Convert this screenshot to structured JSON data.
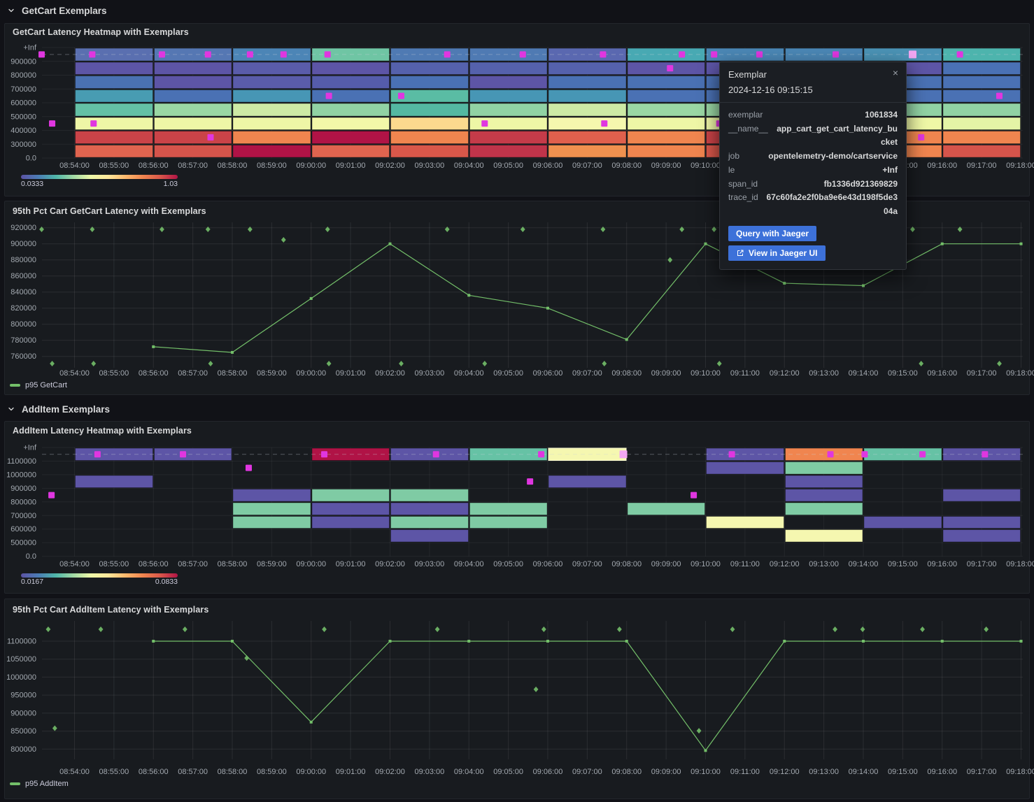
{
  "colors": {
    "background": "#111217",
    "panel": "#181b1f",
    "panel_border": "#23262c",
    "text": "#d8d9da",
    "axis_text": "#a3a9b0",
    "grid": "rgba(255,255,255,0.055)",
    "grid_line_chart": "rgba(255,255,255,0.08)",
    "dashed_exemplar_line": "rgba(204,210,219,0.35)",
    "green": "#73bf69",
    "exemplar": "#e036e0",
    "exemplar_highlight": "#f2a6f2",
    "button": "#3d71d9",
    "spectral": [
      "#5c53a5",
      "#4b7db5",
      "#4fb6a9",
      "#a0d9a4",
      "#eef8a8",
      "#fee89b",
      "#fdb96d",
      "#f0854f",
      "#d9574a",
      "#b01346"
    ]
  },
  "sections": [
    {
      "label": "GetCart Exemplars"
    },
    {
      "label": "AddItem Exemplars"
    }
  ],
  "panels": {
    "heatmap_getcart": {
      "title": "GetCart Latency Heatmap with Exemplars"
    },
    "line_getcart": {
      "title": "95th Pct Cart GetCart Latency with Exemplars",
      "legend": "p95 GetCart"
    },
    "heatmap_additem": {
      "title": "AddItem Latency Heatmap with Exemplars"
    },
    "line_additem": {
      "title": "95th Pct Cart AddItem Latency with Exemplars",
      "legend": "p95 AddItem"
    }
  },
  "xticks": [
    "08:54:00",
    "08:55:00",
    "08:56:00",
    "08:57:00",
    "08:58:00",
    "08:59:00",
    "09:00:00",
    "09:01:00",
    "09:02:00",
    "09:03:00",
    "09:04:00",
    "09:05:00",
    "09:06:00",
    "09:07:00",
    "09:08:00",
    "09:09:00",
    "09:10:00",
    "09:11:00",
    "09:12:00",
    "09:13:00",
    "09:14:00",
    "09:15:00",
    "09:16:00",
    "09:17:00",
    "09:18:00"
  ],
  "tooltip": {
    "title": "Exemplar",
    "close_label": "×",
    "timestamp": "2024-12-16 09:15:15",
    "rows": [
      {
        "label": "exemplar",
        "value": "1061834"
      },
      {
        "label": "__name__",
        "value": "app_cart_get_cart_latency_bucket"
      },
      {
        "label": "job",
        "value": "opentelemetry-demo/cartservice"
      },
      {
        "label": "le",
        "value": "+Inf"
      },
      {
        "label": "span_id",
        "value": "fb1336d921369829"
      },
      {
        "label": "trace_id",
        "value": "67c60fa2e2f0ba9e6e43d198f5de304a"
      }
    ],
    "buttons": [
      {
        "label": "Query with Jaeger",
        "icon": null
      },
      {
        "label": "View in Jaeger UI",
        "icon": "external-link-icon"
      }
    ]
  },
  "chart_data": [
    {
      "id": "hm_getcart",
      "type": "heatmap",
      "title": "GetCart Latency Heatmap with Exemplars",
      "yticks": [
        "+Inf",
        "900000",
        "800000",
        "700000",
        "600000",
        "500000",
        "400000",
        "300000",
        "0.0"
      ],
      "col_start": "08:54:00",
      "col_minutes": 2,
      "scale": {
        "min": "0.0333",
        "max": "1.03"
      },
      "columns": [
        [
          "#5a6fb0",
          "#5d55a6",
          "#4a71b2",
          "#489cb2",
          "#64c0a5",
          "#eef6a6",
          "#ca4348",
          "#e0644f"
        ],
        [
          "#5577b3",
          "#5d55a6",
          "#5d55a6",
          "#4a71b4",
          "#9ad7a4",
          "#eef6a6",
          "#ca4348",
          "#d5544b"
        ],
        [
          "#4c85b6",
          "#5a5caa",
          "#5a5caa",
          "#4796b5",
          "#cdeaa5",
          "#eef6a6",
          "#f0854f",
          "#b01346"
        ],
        [
          "#6fc5a4",
          "#5d55a6",
          "#555cab",
          "#4a71b4",
          "#91d2a4",
          "#f2f7a8",
          "#b01346",
          "#e0644f"
        ],
        [
          "#4f7ab3",
          "#5561ac",
          "#4a71b4",
          "#5abca4",
          "#54b8a2",
          "#fbd98e",
          "#f0854f",
          "#d9574a"
        ],
        [
          "#4f7ab3",
          "#5561ac",
          "#5d55a6",
          "#4796b5",
          "#91d2a4",
          "#eef6a6",
          "#c53b49",
          "#c0344a"
        ],
        [
          "#5a68b0",
          "#5561ac",
          "#4a71b4",
          "#4796b5",
          "#cdeaa5",
          "#f5f7ae",
          "#e0604d",
          "#f0914f"
        ],
        [
          "#48a9b3",
          "#5d55a6",
          "#4a71b4",
          "#4a71b4",
          "#9ad7a4",
          "#eef6a6",
          "#f0854f",
          "#f0854f"
        ],
        [
          "#4b87b5",
          "#5d55a6",
          "#4a71b4",
          "#4a71b4",
          "#9ad7a4",
          "#eef6a6",
          "#cc4348",
          "#d9574a"
        ],
        [
          "#4b87b5",
          "#5d55a6",
          "#5d55a6",
          "#4a71b4",
          "#91d2a4",
          "#eef6a6",
          "#f0854f",
          "#d5544b"
        ],
        [
          "#4b93b5",
          "#5d55a6",
          "#4a71b4",
          "#4a71b4",
          "#91d2a4",
          "#eff8a6",
          "#f0854f",
          "#f0854f"
        ],
        [
          "#4db4ad",
          "#4a71b4",
          "#4a71b4",
          "#4a71b4",
          "#91d2a4",
          "#e4f4a6",
          "#f0854f",
          "#d5544b"
        ]
      ],
      "exemplars": [
        {
          "t": "08:53:10",
          "row": 0
        },
        {
          "t": "08:53:26",
          "row": 5
        },
        {
          "t": "08:54:27",
          "row": 0
        },
        {
          "t": "08:54:29",
          "row": 5
        },
        {
          "t": "08:56:13",
          "row": 0
        },
        {
          "t": "08:57:23",
          "row": 0
        },
        {
          "t": "08:57:27",
          "row": 6
        },
        {
          "t": "08:58:27",
          "row": 0
        },
        {
          "t": "08:59:18",
          "row": 0
        },
        {
          "t": "09:00:25",
          "row": 0
        },
        {
          "t": "09:00:27",
          "row": 3
        },
        {
          "t": "09:02:17",
          "row": 3
        },
        {
          "t": "09:03:27",
          "row": 0
        },
        {
          "t": "09:04:24",
          "row": 5
        },
        {
          "t": "09:05:22",
          "row": 0
        },
        {
          "t": "09:07:24",
          "row": 0
        },
        {
          "t": "09:07:26",
          "row": 5
        },
        {
          "t": "09:09:06",
          "row": 1
        },
        {
          "t": "09:09:24",
          "row": 0
        },
        {
          "t": "09:10:13",
          "row": 0
        },
        {
          "t": "09:10:21",
          "row": 5
        },
        {
          "t": "09:11:22",
          "row": 0
        },
        {
          "t": "09:13:18",
          "row": 0
        },
        {
          "t": "09:15:15",
          "row": 0,
          "hl": true
        },
        {
          "t": "09:15:28",
          "row": 6
        },
        {
          "t": "09:16:27",
          "row": 0
        },
        {
          "t": "09:17:27",
          "row": 3
        }
      ]
    },
    {
      "id": "line_getcart",
      "type": "line",
      "title": "95th Pct Cart GetCart Latency with Exemplars",
      "yticks": [
        760000,
        780000,
        800000,
        820000,
        840000,
        860000,
        880000,
        900000,
        920000
      ],
      "series": [
        {
          "name": "p95 GetCart",
          "x": [
            "08:56:00",
            "08:58:00",
            "09:00:00",
            "09:02:00",
            "09:04:00",
            "09:06:00",
            "09:08:00",
            "09:10:00",
            "09:12:00",
            "09:14:00",
            "09:16:00",
            "09:18:00"
          ],
          "values": [
            772000,
            765000,
            832000,
            900000,
            836000,
            820000,
            781000,
            900000,
            851000,
            848000,
            900000,
            900000
          ]
        }
      ],
      "diamonds": [
        {
          "t": "08:53:10",
          "v": 918000
        },
        {
          "t": "08:54:27",
          "v": 918000
        },
        {
          "t": "08:56:13",
          "v": 918000
        },
        {
          "t": "08:57:23",
          "v": 918000
        },
        {
          "t": "08:58:27",
          "v": 918000
        },
        {
          "t": "09:00:25",
          "v": 918000
        },
        {
          "t": "09:03:27",
          "v": 918000
        },
        {
          "t": "09:05:22",
          "v": 918000
        },
        {
          "t": "09:07:24",
          "v": 918000
        },
        {
          "t": "09:09:24",
          "v": 918000
        },
        {
          "t": "09:10:13",
          "v": 918000
        },
        {
          "t": "09:11:22",
          "v": 918000
        },
        {
          "t": "09:13:18",
          "v": 918000
        },
        {
          "t": "09:15:15",
          "v": 918000
        },
        {
          "t": "09:16:27",
          "v": 918000
        },
        {
          "t": "08:59:18",
          "v": 905000
        },
        {
          "t": "09:09:06",
          "v": 880000
        },
        {
          "t": "08:53:26",
          "v": 751000
        },
        {
          "t": "08:54:29",
          "v": 751000
        },
        {
          "t": "08:57:27",
          "v": 751000
        },
        {
          "t": "09:00:27",
          "v": 751000
        },
        {
          "t": "09:02:17",
          "v": 751000
        },
        {
          "t": "09:04:24",
          "v": 751000
        },
        {
          "t": "09:07:26",
          "v": 751000
        },
        {
          "t": "09:10:21",
          "v": 751000
        },
        {
          "t": "09:15:28",
          "v": 751000
        },
        {
          "t": "09:17:27",
          "v": 751000
        }
      ]
    },
    {
      "id": "hm_additem",
      "type": "heatmap",
      "title": "AddItem Latency Heatmap with Exemplars",
      "yticks": [
        "+Inf",
        "1100000",
        "1000000",
        "900000",
        "800000",
        "700000",
        "600000",
        "500000",
        "0.0"
      ],
      "col_start": "08:54:00",
      "col_minutes": 2,
      "scale": {
        "min": "0.0167",
        "max": "0.0833"
      },
      "highlight_cell": {
        "col": 6,
        "row": 0
      },
      "columns": [
        [
          "#5d55a6",
          null,
          "#5d55a6",
          null,
          null,
          null,
          null,
          null
        ],
        [
          "#5d55a6",
          null,
          null,
          null,
          null,
          null,
          null,
          null
        ],
        [
          null,
          null,
          null,
          "#5d55a6",
          "#7fcba4",
          "#7fcba4",
          null,
          null
        ],
        [
          "#b01346",
          null,
          null,
          "#7fcba4",
          "#5d55a6",
          "#5d55a6",
          null,
          null
        ],
        [
          "#5d55a6",
          null,
          null,
          "#7fcba4",
          "#5d55a6",
          "#7fcba4",
          "#5d55a6",
          null
        ],
        [
          "#66c2a5",
          null,
          null,
          null,
          "#7fcba4",
          "#7fcba4",
          null,
          null
        ],
        [
          "#f5f7b0",
          null,
          "#5d55a6",
          null,
          null,
          null,
          null,
          null
        ],
        [
          null,
          null,
          null,
          null,
          "#7fcba4",
          null,
          null,
          null
        ],
        [
          "#5d55a6",
          "#5d55a6",
          null,
          null,
          null,
          "#f5f7b0",
          null,
          null
        ],
        [
          "#f0854f",
          "#7fcba4",
          "#5d55a6",
          "#5d55a6",
          "#7fcba4",
          null,
          "#f5f7b0",
          null
        ],
        [
          "#66c2a5",
          null,
          null,
          null,
          null,
          "#5d55a6",
          null,
          null
        ],
        [
          "#5d55a6",
          null,
          null,
          "#5d55a6",
          null,
          "#5d55a6",
          "#5d55a6",
          null
        ]
      ],
      "exemplars": [
        {
          "t": "08:53:25",
          "row": 3
        },
        {
          "t": "08:54:35",
          "row": 0
        },
        {
          "t": "08:56:45",
          "row": 0
        },
        {
          "t": "08:58:25",
          "row": 1
        },
        {
          "t": "09:00:20",
          "row": 0
        },
        {
          "t": "09:03:10",
          "row": 0
        },
        {
          "t": "09:05:33",
          "row": 2
        },
        {
          "t": "09:05:50",
          "row": 0
        },
        {
          "t": "09:07:55",
          "row": 0,
          "hl": true
        },
        {
          "t": "09:09:42",
          "row": 3
        },
        {
          "t": "09:10:40",
          "row": 0
        },
        {
          "t": "09:13:10",
          "row": 0
        },
        {
          "t": "09:14:02",
          "row": 0
        },
        {
          "t": "09:15:30",
          "row": 0
        },
        {
          "t": "09:17:05",
          "row": 0
        }
      ]
    },
    {
      "id": "line_additem",
      "type": "line",
      "title": "95th Pct Cart AddItem Latency with Exemplars",
      "yticks": [
        800000,
        850000,
        900000,
        950000,
        1000000,
        1050000,
        1100000
      ],
      "series": [
        {
          "name": "p95 AddItem",
          "x": [
            "08:56:00",
            "08:58:00",
            "09:00:00",
            "09:02:00",
            "09:04:00",
            "09:06:00",
            "09:08:00",
            "09:10:00",
            "09:12:00",
            "09:14:00",
            "09:16:00",
            "09:18:00"
          ],
          "values": [
            1100000,
            1100000,
            875000,
            1100000,
            1100000,
            1100000,
            1100000,
            796000,
            1100000,
            1100000,
            1100000,
            1100000
          ]
        }
      ],
      "diamonds": [
        {
          "t": "08:53:20",
          "v": 1133000
        },
        {
          "t": "08:54:40",
          "v": 1133000
        },
        {
          "t": "08:56:48",
          "v": 1133000
        },
        {
          "t": "09:00:20",
          "v": 1133000
        },
        {
          "t": "09:03:12",
          "v": 1133000
        },
        {
          "t": "09:05:54",
          "v": 1133000
        },
        {
          "t": "09:07:49",
          "v": 1133000
        },
        {
          "t": "09:10:41",
          "v": 1133000
        },
        {
          "t": "09:13:17",
          "v": 1133000
        },
        {
          "t": "09:13:59",
          "v": 1133000
        },
        {
          "t": "09:15:30",
          "v": 1133000
        },
        {
          "t": "09:17:07",
          "v": 1133000
        },
        {
          "t": "08:53:30",
          "v": 858000
        },
        {
          "t": "08:58:22",
          "v": 1053000
        },
        {
          "t": "09:05:42",
          "v": 966000
        },
        {
          "t": "09:09:50",
          "v": 851000
        }
      ]
    }
  ]
}
